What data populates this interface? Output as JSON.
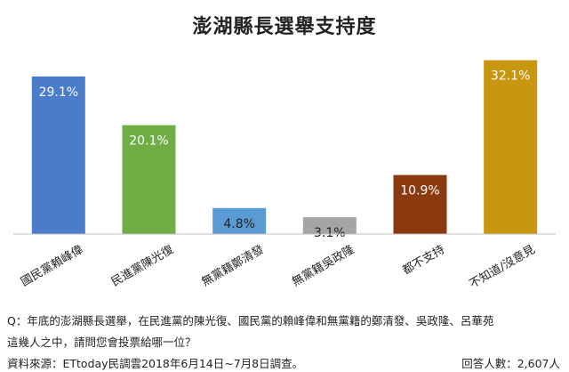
{
  "chart_data": {
    "type": "bar",
    "title": "澎湖縣長選舉支持度",
    "categories": [
      "國民黨賴峰偉",
      "民進黨陳光復",
      "無黨籍鄭清發",
      "無黨籍吳政隆",
      "都不支持",
      "不知道/沒意見"
    ],
    "values": [
      29.1,
      20.1,
      4.8,
      3.1,
      10.9,
      32.1
    ],
    "value_labels": [
      "29.1%",
      "20.1%",
      "4.8%",
      "3.1%",
      "10.9%",
      "32.1%"
    ],
    "colors": [
      "#4a7cc9",
      "#6fad45",
      "#5b9bd5",
      "#a5a5a5",
      "#8b3a0f",
      "#c9960f"
    ],
    "label_colors": [
      "#ffffff",
      "#ffffff",
      "#222222",
      "#222222",
      "#ffffff",
      "#ffffff"
    ],
    "ylim": [
      0,
      35
    ],
    "grid": false,
    "legend": "none"
  },
  "footer": {
    "question_line1": "Q：年底的澎湖縣長選舉，在民進黨的陳光復、國民黨的賴峰偉和無黨籍的鄭清發、吳政隆、呂華苑",
    "question_line2": "這幾人之中，請問您會投票給哪一位？",
    "source": "資料來源：ETtoday民調雲2018年6月14日~7月8日調查。",
    "respondents": "回答人數：2,607人"
  }
}
